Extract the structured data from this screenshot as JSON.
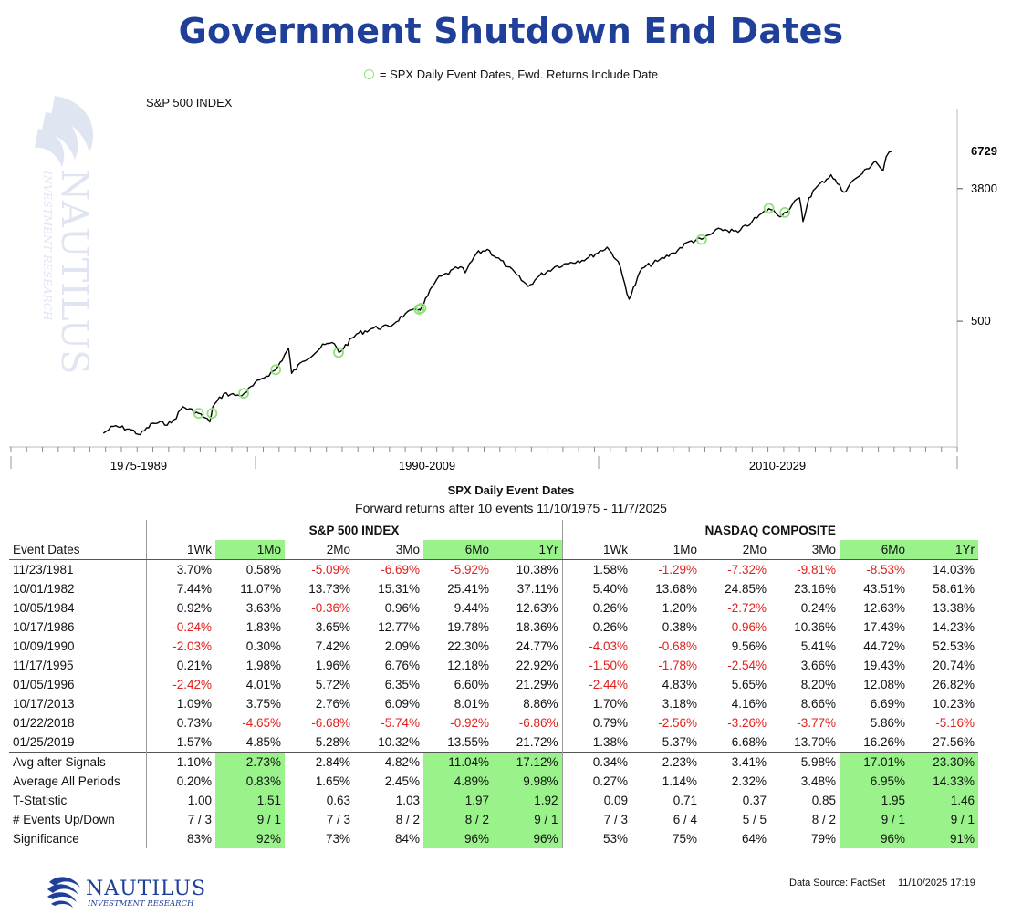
{
  "title": "Government Shutdown End Dates",
  "legend_label": "= SPX Daily Event Dates, Fwd. Returns Include Date",
  "chart_data": {
    "type": "line",
    "title": "S&P 500 INDEX",
    "scale": "log",
    "y_ticks": [
      500,
      3800
    ],
    "y_last_label": "6729",
    "x_period_labels": [
      "1975-1989",
      "1990-2009",
      "2010-2029"
    ],
    "x_range": [
      1970,
      2030
    ],
    "grid": false,
    "marker_color": "#8fe17a",
    "line_color": "#000000",
    "series": [
      {
        "x": [
          1975.86,
          1976.5,
          1977.5,
          1978.2,
          1979.0,
          1980.2,
          1980.9,
          1981.9,
          1982.6,
          1982.8,
          1983.5,
          1984.5,
          1984.8,
          1985.9,
          1986.8,
          1987.6,
          1987.8,
          1988.5,
          1989.9,
          1990.5,
          1990.8,
          1991.9,
          1993.0,
          1994.0,
          1995.0,
          1995.9,
          1996.0,
          1997.0,
          1998.5,
          1998.8,
          1999.5,
          2000.2,
          2001.5,
          2002.8,
          2003.5,
          2004.5,
          2005.5,
          2006.5,
          2007.8,
          2008.5,
          2009.2,
          2010.0,
          2011.0,
          2012.0,
          2013.0,
          2013.8,
          2015.0,
          2016.1,
          2017.0,
          2018.06,
          2018.9,
          2019.07,
          2020.0,
          2020.22,
          2020.6,
          2021.0,
          2022.0,
          2022.8,
          2023.5,
          2024.0,
          2024.8,
          2025.3,
          2025.5,
          2025.86
        ],
        "y": [
          90,
          100,
          96,
          88,
          105,
          105,
          135,
          122,
          107,
          135,
          165,
          160,
          166,
          208,
          238,
          330,
          225,
          270,
          350,
          355,
          310,
          410,
          450,
          460,
          560,
          600,
          610,
          950,
          1150,
          1050,
          1400,
          1500,
          1150,
          850,
          1000,
          1150,
          1230,
          1300,
          1550,
          1250,
          700,
          1120,
          1250,
          1420,
          1690,
          1750,
          2050,
          1950,
          2300,
          2800,
          2500,
          2640,
          3300,
          2300,
          3300,
          3800,
          4700,
          3600,
          4400,
          4800,
          5800,
          5000,
          6200,
          6729
        ]
      }
    ],
    "events": [
      {
        "x": 1981.9,
        "y": 122
      },
      {
        "x": 1982.75,
        "y": 122
      },
      {
        "x": 1984.76,
        "y": 166
      },
      {
        "x": 1986.79,
        "y": 238
      },
      {
        "x": 1990.77,
        "y": 310
      },
      {
        "x": 1995.88,
        "y": 600
      },
      {
        "x": 1996.01,
        "y": 610
      },
      {
        "x": 2013.79,
        "y": 1745
      },
      {
        "x": 2018.06,
        "y": 2810
      },
      {
        "x": 2019.07,
        "y": 2640
      }
    ]
  },
  "table": {
    "title": "SPX Daily Event Dates",
    "subtitle": "Forward returns after 10 events 11/10/1975 - 11/7/2025",
    "group_headers": [
      "S&P 500 INDEX",
      "NASDAQ COMPOSITE"
    ],
    "row_header": "Event Dates",
    "columns": [
      "1Wk",
      "1Mo",
      "2Mo",
      "3Mo",
      "6Mo",
      "1Yr",
      "1Wk",
      "1Mo",
      "2Mo",
      "3Mo",
      "6Mo",
      "1Yr"
    ],
    "highlight_columns": [
      1,
      4,
      5,
      10,
      11
    ],
    "highlight_color": "#99f38a",
    "event_rows": [
      {
        "label": "11/23/1981",
        "values": [
          "3.70%",
          "0.58%",
          "-5.09%",
          "-6.69%",
          "-5.92%",
          "10.38%",
          "1.58%",
          "-1.29%",
          "-7.32%",
          "-9.81%",
          "-8.53%",
          "14.03%"
        ]
      },
      {
        "label": "10/01/1982",
        "values": [
          "7.44%",
          "11.07%",
          "13.73%",
          "15.31%",
          "25.41%",
          "37.11%",
          "5.40%",
          "13.68%",
          "24.85%",
          "23.16%",
          "43.51%",
          "58.61%"
        ]
      },
      {
        "label": "10/05/1984",
        "values": [
          "0.92%",
          "3.63%",
          "-0.36%",
          "0.96%",
          "9.44%",
          "12.63%",
          "0.26%",
          "1.20%",
          "-2.72%",
          "0.24%",
          "12.63%",
          "13.38%"
        ]
      },
      {
        "label": "10/17/1986",
        "values": [
          "-0.24%",
          "1.83%",
          "3.65%",
          "12.77%",
          "19.78%",
          "18.36%",
          "0.26%",
          "0.38%",
          "-0.96%",
          "10.36%",
          "17.43%",
          "14.23%"
        ]
      },
      {
        "label": "10/09/1990",
        "values": [
          "-2.03%",
          "0.30%",
          "7.42%",
          "2.09%",
          "22.30%",
          "24.77%",
          "-4.03%",
          "-0.68%",
          "9.56%",
          "5.41%",
          "44.72%",
          "52.53%"
        ]
      },
      {
        "label": "11/17/1995",
        "values": [
          "0.21%",
          "1.98%",
          "1.96%",
          "6.76%",
          "12.18%",
          "22.92%",
          "-1.50%",
          "-1.78%",
          "-2.54%",
          "3.66%",
          "19.43%",
          "20.74%"
        ]
      },
      {
        "label": "01/05/1996",
        "values": [
          "-2.42%",
          "4.01%",
          "5.72%",
          "6.35%",
          "6.60%",
          "21.29%",
          "-2.44%",
          "4.83%",
          "5.65%",
          "8.20%",
          "12.08%",
          "26.82%"
        ]
      },
      {
        "label": "10/17/2013",
        "values": [
          "1.09%",
          "3.75%",
          "2.76%",
          "6.09%",
          "8.01%",
          "8.86%",
          "1.70%",
          "3.18%",
          "4.16%",
          "8.66%",
          "6.69%",
          "10.23%"
        ]
      },
      {
        "label": "01/22/2018",
        "values": [
          "0.73%",
          "-4.65%",
          "-6.68%",
          "-5.74%",
          "-0.92%",
          "-6.86%",
          "0.79%",
          "-2.56%",
          "-3.26%",
          "-3.77%",
          "5.86%",
          "-5.16%"
        ]
      },
      {
        "label": "01/25/2019",
        "values": [
          "1.57%",
          "4.85%",
          "5.28%",
          "10.32%",
          "13.55%",
          "21.72%",
          "1.38%",
          "5.37%",
          "6.68%",
          "13.70%",
          "16.26%",
          "27.56%"
        ]
      }
    ],
    "summary_rows": [
      {
        "label": "Avg after Signals",
        "values": [
          "1.10%",
          "2.73%",
          "2.84%",
          "4.82%",
          "11.04%",
          "17.12%",
          "0.34%",
          "2.23%",
          "3.41%",
          "5.98%",
          "17.01%",
          "23.30%"
        ]
      },
      {
        "label": "Average All Periods",
        "values": [
          "0.20%",
          "0.83%",
          "1.65%",
          "2.45%",
          "4.89%",
          "9.98%",
          "0.27%",
          "1.14%",
          "2.32%",
          "3.48%",
          "6.95%",
          "14.33%"
        ]
      },
      {
        "label": "T-Statistic",
        "values": [
          "1.00",
          "1.51",
          "0.63",
          "1.03",
          "1.97",
          "1.92",
          "0.09",
          "0.71",
          "0.37",
          "0.85",
          "1.95",
          "1.46"
        ]
      },
      {
        "label": "# Events Up/Down",
        "values": [
          "7 / 3",
          "9 / 1",
          "7 / 3",
          "8 / 2",
          "8 / 2",
          "9 / 1",
          "7 / 3",
          "6 / 4",
          "5 / 5",
          "8 / 2",
          "9 / 1",
          "9 / 1"
        ]
      },
      {
        "label": "Significance",
        "values": [
          "83%",
          "92%",
          "73%",
          "84%",
          "96%",
          "96%",
          "53%",
          "75%",
          "64%",
          "79%",
          "96%",
          "91%"
        ]
      }
    ]
  },
  "footer": {
    "logo_name": "NAUTILUS",
    "logo_tagline": "INVESTMENT RESEARCH",
    "source": "Data Source: FactSet",
    "timestamp": "11/10/2025 17:19"
  },
  "colors": {
    "title": "#1f3f99",
    "negative": "#e0201b",
    "logo": "#1f3f99"
  }
}
